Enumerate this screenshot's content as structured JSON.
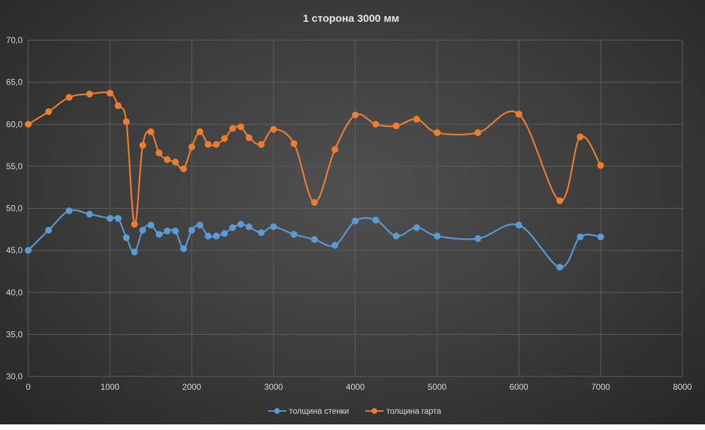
{
  "chart_data": {
    "type": "line",
    "title": "1 сторона 3000 мм",
    "xlabel": "",
    "ylabel": "",
    "xlim": [
      0,
      8000
    ],
    "ylim": [
      30,
      70
    ],
    "x_ticks": [
      "0",
      "1000",
      "2000",
      "3000",
      "4000",
      "5000",
      "6000",
      "7000",
      "8000"
    ],
    "y_ticks": [
      "30,0",
      "35,0",
      "40,0",
      "45,0",
      "50,0",
      "55,0",
      "60,0",
      "65,0",
      "70,0"
    ],
    "grid": true,
    "legend_position": "bottom",
    "series": [
      {
        "name": "толщина стенки",
        "color": "#5b9bd5",
        "x": [
          0,
          250,
          500,
          750,
          1000,
          1100,
          1200,
          1300,
          1400,
          1500,
          1600,
          1700,
          1800,
          1900,
          2000,
          2100,
          2200,
          2300,
          2400,
          2500,
          2600,
          2700,
          2850,
          3000,
          3250,
          3500,
          3750,
          4000,
          4250,
          4500,
          4750,
          5000,
          5500,
          6000,
          6500,
          6750,
          7000
        ],
        "values": [
          45.0,
          47.4,
          49.7,
          49.3,
          48.8,
          48.8,
          46.5,
          44.8,
          47.4,
          48.0,
          46.9,
          47.3,
          47.3,
          45.2,
          47.4,
          48.0,
          46.7,
          46.7,
          47.0,
          47.7,
          48.1,
          47.8,
          47.1,
          47.8,
          46.9,
          46.3,
          45.6,
          48.5,
          48.6,
          46.7,
          47.7,
          46.7,
          46.4,
          48.0,
          43.0,
          46.6,
          46.6
        ]
      },
      {
        "name": "толщина гарта",
        "color": "#ed7d31",
        "x": [
          0,
          250,
          500,
          750,
          1000,
          1100,
          1200,
          1300,
          1400,
          1500,
          1600,
          1700,
          1800,
          1900,
          2000,
          2100,
          2200,
          2300,
          2400,
          2500,
          2600,
          2700,
          2850,
          3000,
          3250,
          3500,
          3750,
          4000,
          4250,
          4500,
          4750,
          5000,
          5500,
          6000,
          6500,
          6750,
          7000
        ],
        "values": [
          60.0,
          61.5,
          63.2,
          63.6,
          63.7,
          62.2,
          60.3,
          48.1,
          57.5,
          59.1,
          56.6,
          55.8,
          55.5,
          54.7,
          57.3,
          59.1,
          57.6,
          57.6,
          58.3,
          59.5,
          59.7,
          58.4,
          57.6,
          59.4,
          57.7,
          50.7,
          57.0,
          61.1,
          60.0,
          59.8,
          60.6,
          59.0,
          59.0,
          61.2,
          50.9,
          58.5,
          55.1
        ]
      }
    ]
  }
}
